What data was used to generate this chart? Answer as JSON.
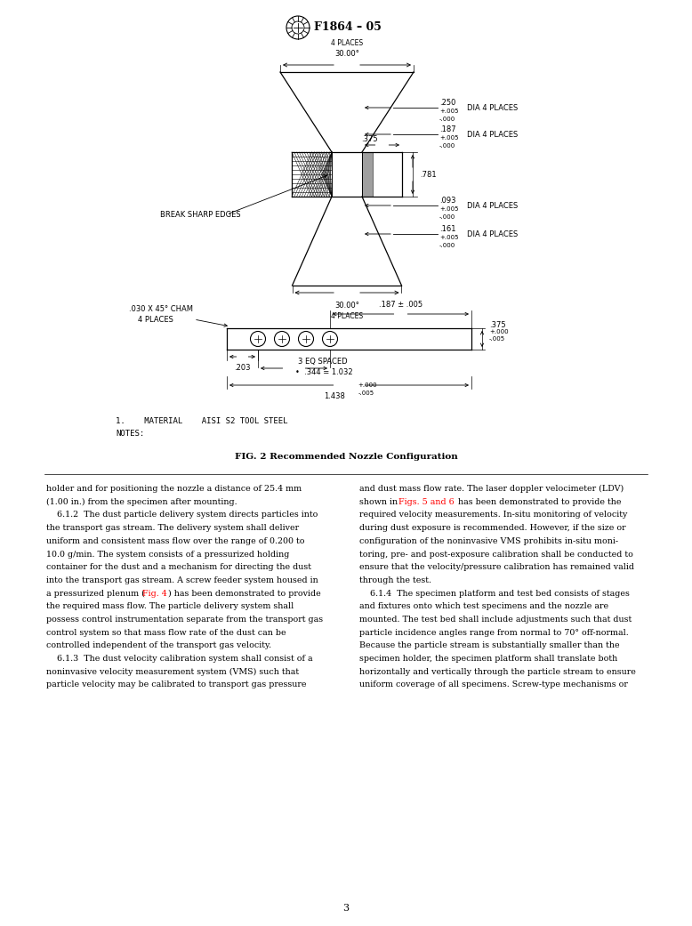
{
  "page_width": 7.78,
  "page_height": 10.41,
  "dpi": 100,
  "bg_color": "#ffffff",
  "header_text": "F1864 – 05",
  "fig_caption": "FIG. 2 Recommended Nozzle Configuration",
  "page_number": "3",
  "body_col1": [
    "holder and for positioning the nozzle a distance of 25.4 mm",
    "(1.00 in.) from the specimen after mounting.",
    "    6.1.2  The dust particle delivery system directs particles into",
    "the transport gas stream. The delivery system shall deliver",
    "uniform and consistent mass flow over the range of 0.200 to",
    "10.0 g/min. The system consists of a pressurized holding",
    "container for the dust and a mechanism for directing the dust",
    "into the transport gas stream. A screw feeder system housed in",
    "a pressurized plenum (Fig. 4) has been demonstrated to provide",
    "the required mass flow. The particle delivery system shall",
    "possess control instrumentation separate from the transport gas",
    "control system so that mass flow rate of the dust can be",
    "controlled independent of the transport gas velocity.",
    "    6.1.3  The dust velocity calibration system shall consist of a",
    "noninvasive velocity measurement system (VMS) such that",
    "particle velocity may be calibrated to transport gas pressure"
  ],
  "body_col2": [
    "and dust mass flow rate. The laser doppler velocimeter (LDV)",
    "shown in Figs. 5 and 6 has been demonstrated to provide the",
    "required velocity measurements. In-situ monitoring of velocity",
    "during dust exposure is recommended. However, if the size or",
    "configuration of the noninvasive VMS prohibits in-situ moni-",
    "toring, pre- and post-exposure calibration shall be conducted to",
    "ensure that the velocity/pressure calibration has remained valid",
    "through the test.",
    "    6.1.4  The specimen platform and test bed consists of stages",
    "and fixtures onto which test specimens and the nozzle are",
    "mounted. The test bed shall include adjustments such that dust",
    "particle incidence angles range from normal to 70° off-normal.",
    "Because the particle stream is substantially smaller than the",
    "specimen holder, the specimen platform shall translate both",
    "horizontally and vertically through the particle stream to ensure",
    "uniform coverage of all specimens. Screw-type mechanisms or"
  ]
}
